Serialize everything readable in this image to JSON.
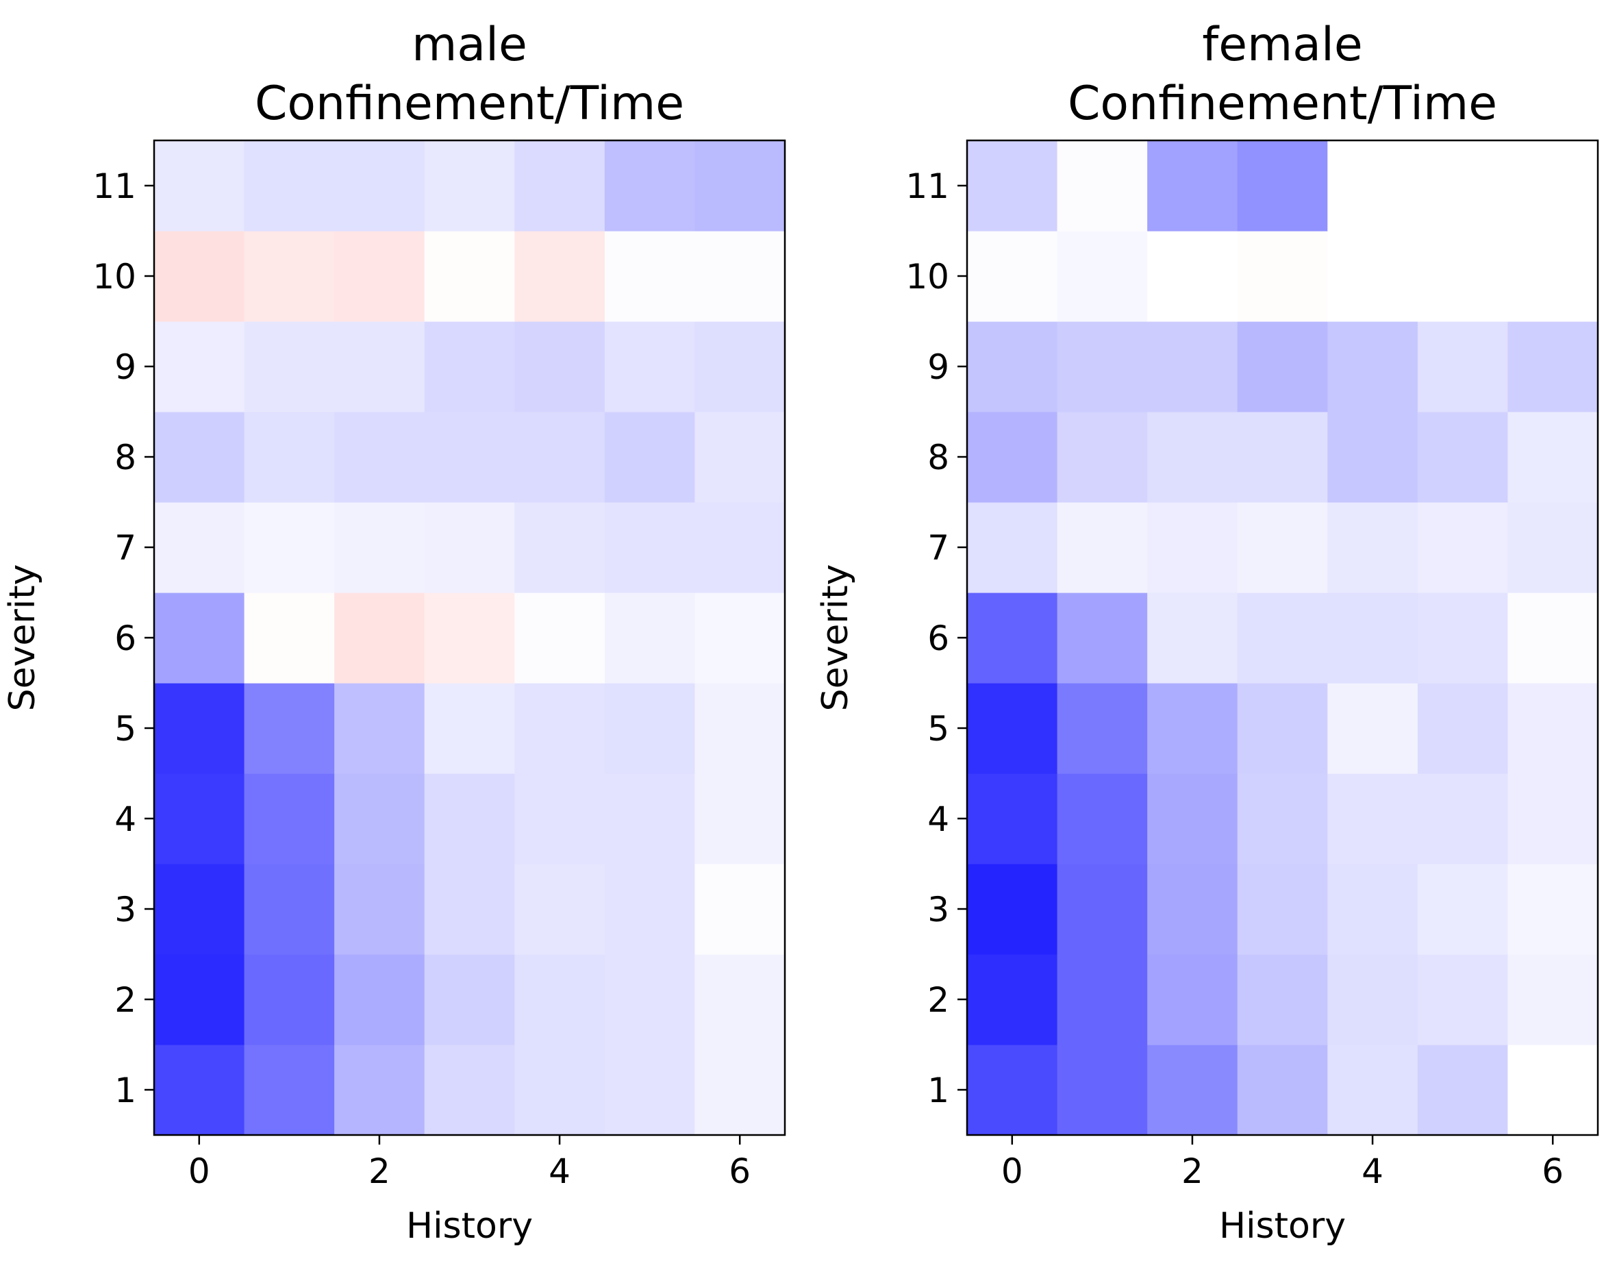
{
  "chart_data": [
    {
      "type": "heatmap",
      "title": [
        "male",
        "Confinement/Time"
      ],
      "xlabel": "History",
      "ylabel": "Severity",
      "x_values": [
        0,
        1,
        2,
        3,
        4,
        5,
        6
      ],
      "y_values": [
        1,
        2,
        3,
        4,
        5,
        6,
        7,
        8,
        9,
        10,
        11
      ],
      "xticks": [
        "0",
        "2",
        "4",
        "6"
      ],
      "yticks": [
        "1",
        "2",
        "3",
        "4",
        "5",
        "6",
        "7",
        "8",
        "9",
        "10",
        "11"
      ],
      "colormap": "bwr",
      "value_range": [
        -1,
        1
      ],
      "values": [
        [
          -0.72,
          -0.55,
          -0.29,
          -0.15,
          -0.12,
          -0.11,
          -0.05
        ],
        [
          -0.83,
          -0.59,
          -0.33,
          -0.18,
          -0.12,
          -0.11,
          -0.05
        ],
        [
          -0.82,
          -0.56,
          -0.28,
          -0.14,
          -0.1,
          -0.11,
          -0.01
        ],
        [
          -0.77,
          -0.55,
          -0.27,
          -0.14,
          -0.11,
          -0.11,
          -0.05
        ],
        [
          -0.79,
          -0.49,
          -0.25,
          -0.08,
          -0.11,
          -0.12,
          -0.05
        ],
        [
          -0.36,
          0.01,
          0.11,
          0.07,
          -0.01,
          -0.05,
          -0.03
        ],
        [
          -0.06,
          -0.04,
          -0.05,
          -0.06,
          -0.1,
          -0.11,
          -0.11
        ],
        [
          -0.19,
          -0.12,
          -0.14,
          -0.14,
          -0.14,
          -0.18,
          -0.1
        ],
        [
          -0.07,
          -0.1,
          -0.1,
          -0.15,
          -0.17,
          -0.11,
          -0.13
        ],
        [
          0.12,
          0.09,
          0.1,
          0.01,
          0.09,
          -0.01,
          -0.01
        ],
        [
          -0.09,
          -0.12,
          -0.12,
          -0.09,
          -0.14,
          -0.25,
          -0.27
        ]
      ]
    },
    {
      "type": "heatmap",
      "title": [
        "female",
        "Confinement/Time"
      ],
      "xlabel": "History",
      "ylabel": "Severity",
      "x_values": [
        0,
        1,
        2,
        3,
        4,
        5,
        6
      ],
      "y_values": [
        1,
        2,
        3,
        4,
        5,
        6,
        7,
        8,
        9,
        10,
        11
      ],
      "xticks": [
        "0",
        "2",
        "4",
        "6"
      ],
      "yticks": [
        "1",
        "2",
        "3",
        "4",
        "5",
        "6",
        "7",
        "8",
        "9",
        "10",
        "11"
      ],
      "colormap": "bwr",
      "value_range": [
        -1,
        1
      ],
      "values": [
        [
          -0.71,
          -0.6,
          -0.46,
          -0.27,
          -0.12,
          -0.18,
          0.0
        ],
        [
          -0.82,
          -0.6,
          -0.36,
          -0.22,
          -0.13,
          -0.11,
          -0.05
        ],
        [
          -0.86,
          -0.6,
          -0.35,
          -0.19,
          -0.12,
          -0.08,
          -0.04
        ],
        [
          -0.77,
          -0.59,
          -0.34,
          -0.18,
          -0.11,
          -0.11,
          -0.07
        ],
        [
          -0.81,
          -0.52,
          -0.32,
          -0.19,
          -0.05,
          -0.14,
          -0.07
        ],
        [
          -0.61,
          -0.36,
          -0.09,
          -0.12,
          -0.12,
          -0.11,
          -0.01
        ],
        [
          -0.12,
          -0.05,
          -0.07,
          -0.05,
          -0.09,
          -0.07,
          -0.09
        ],
        [
          -0.3,
          -0.17,
          -0.13,
          -0.13,
          -0.22,
          -0.18,
          -0.08
        ],
        [
          -0.23,
          -0.2,
          -0.2,
          -0.28,
          -0.22,
          -0.12,
          -0.19
        ],
        [
          -0.01,
          -0.03,
          0.0,
          0.01,
          0.0,
          0.0,
          0.0
        ],
        [
          -0.18,
          -0.01,
          -0.37,
          -0.43,
          0.0,
          0.0,
          0.0
        ]
      ]
    }
  ]
}
